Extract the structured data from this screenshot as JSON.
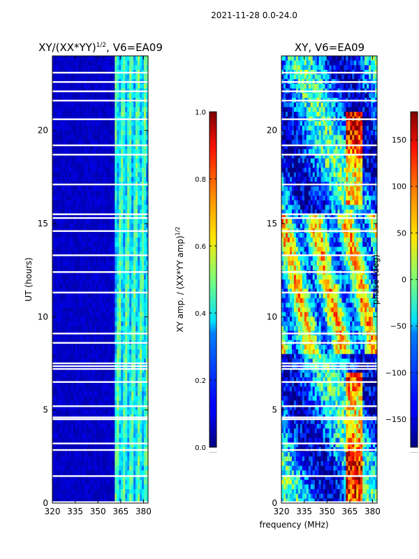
{
  "suptitle": "2021-11-28 0.0-24.0",
  "chart_data": [
    {
      "type": "heatmap",
      "title": "XY/(XX*YY)^{1/2}, V6=EA09",
      "title_base": "XY/(XX*YY)",
      "title_sup": "1/2",
      "title_suffix": ", V6=EA09",
      "xlabel": "",
      "ylabel": "UT (hours)",
      "xlim": [
        320,
        383
      ],
      "ylim": [
        0,
        24
      ],
      "xticks": [
        320,
        335,
        350,
        365,
        380
      ],
      "yticks": [
        0,
        5,
        10,
        15,
        20
      ],
      "colorbar": {
        "label": "XY amp. / (XX*YY amp)^{1/2}",
        "label_base": "XY amp. / (XX*YY amp)",
        "label_sup": "1/2",
        "range": [
          0.0,
          1.0
        ],
        "ticks": [
          "0.0",
          "0.2",
          "0.4",
          "0.6",
          "0.8",
          "1.0"
        ],
        "colormap": "jet"
      },
      "white_gap_hours": [
        0.05,
        1.45,
        2.85,
        3.2,
        4.5,
        4.6,
        5.2,
        6.5,
        7.2,
        7.35,
        7.5,
        8.6,
        9.1,
        11.3,
        12.4,
        13.3,
        14.6,
        15.3,
        15.5,
        17.1,
        18.7,
        19.2,
        20.6,
        21.6,
        22.1,
        22.6,
        23.1
      ]
    },
    {
      "type": "heatmap",
      "title": "XY, V6=EA09",
      "xlabel": "frequency (MHz)",
      "ylabel": "",
      "xlim": [
        320,
        383
      ],
      "ylim": [
        0,
        24
      ],
      "xticks": [
        320,
        335,
        350,
        365,
        380
      ],
      "yticks": [
        0,
        5,
        10,
        15,
        20
      ],
      "colorbar": {
        "label": "phase (deg)",
        "range": [
          -180,
          180
        ],
        "ticks": [
          "−150",
          "−100",
          "−50",
          "0",
          "50",
          "100",
          "150"
        ],
        "colormap": "jet"
      },
      "white_gap_hours": [
        0.05,
        1.45,
        2.85,
        3.2,
        4.5,
        4.6,
        5.2,
        6.5,
        7.2,
        7.35,
        7.5,
        8.6,
        9.1,
        11.3,
        12.4,
        13.3,
        14.6,
        15.3,
        15.5,
        17.1,
        18.7,
        19.2,
        20.6,
        21.6,
        22.1,
        22.6,
        23.1
      ]
    }
  ]
}
